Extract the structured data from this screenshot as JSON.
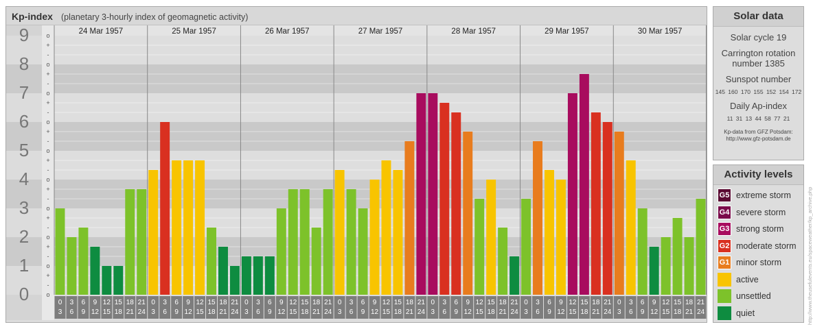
{
  "header": {
    "title": "Kp-index",
    "subtitle": "(planetary 3-hourly index of geomagnetic activity)"
  },
  "chart_data": {
    "type": "bar",
    "title": "Kp-index",
    "subtitle": "(planetary 3-hourly index of geomagnetic activity)",
    "ylim": [
      0,
      9
    ],
    "y_ticks": [
      "0",
      "1",
      "2",
      "3",
      "4",
      "5",
      "6",
      "7",
      "8",
      "9"
    ],
    "sub_ticks": [
      "-",
      "o",
      "+"
    ],
    "dates": [
      "24 Mar 1957",
      "25 Mar 1957",
      "26 Mar 1957",
      "27 Mar 1957",
      "28 Mar 1957",
      "29 Mar 1957",
      "30 Mar 1957"
    ],
    "interval_labels": [
      [
        "0",
        "3"
      ],
      [
        "3",
        "6"
      ],
      [
        "6",
        "9"
      ],
      [
        "9",
        "12"
      ],
      [
        "12",
        "15"
      ],
      [
        "15",
        "18"
      ],
      [
        "18",
        "21"
      ],
      [
        "21",
        "24"
      ]
    ],
    "values": [
      [
        3.0,
        2.0,
        2.333,
        1.667,
        1.0,
        1.0,
        3.667,
        3.667
      ],
      [
        4.333,
        6.0,
        4.667,
        4.667,
        4.667,
        2.333,
        1.667,
        1.0
      ],
      [
        1.333,
        1.333,
        1.333,
        3.0,
        3.667,
        3.667,
        2.333,
        3.667
      ],
      [
        4.333,
        3.667,
        3.0,
        4.0,
        4.667,
        4.333,
        5.333,
        7.0
      ],
      [
        7.0,
        6.667,
        6.333,
        5.667,
        3.333,
        4.0,
        2.333,
        1.333
      ],
      [
        3.333,
        5.333,
        4.333,
        4.0,
        7.0,
        7.667,
        6.333,
        6.0
      ],
      [
        5.667,
        4.667,
        3.0,
        1.667,
        2.0,
        2.667,
        2.0,
        3.333
      ]
    ],
    "grid": true
  },
  "solar": {
    "title": "Solar data",
    "cycle": "Solar cycle 19",
    "carrington_line1": "Carrington rotation",
    "carrington_line2": "number 1385",
    "sunspot_label": "Sunspot number",
    "sunspot_values": "145 160 170 155 152 154 172",
    "ap_label": "Daily Ap-index",
    "ap_values": "11 31 13 44 58 77 21",
    "credit_line1": "Kp-data from  GFZ Potsdam:",
    "credit_line2": "http://www.gfz-potsdam.de"
  },
  "levels": {
    "title": "Activity levels",
    "items": [
      {
        "code": "G5",
        "label": "extreme storm",
        "color": "#5a0a32"
      },
      {
        "code": "G4",
        "label": "severe storm",
        "color": "#7a0a4a"
      },
      {
        "code": "G3",
        "label": "strong storm",
        "color": "#a80c5e"
      },
      {
        "code": "G2",
        "label": "moderate storm",
        "color": "#d93020"
      },
      {
        "code": "G1",
        "label": "minor storm",
        "color": "#e87c1e"
      },
      {
        "code": "",
        "label": "active",
        "color": "#f8c400"
      },
      {
        "code": "",
        "label": "unsettled",
        "color": "#7dc22a"
      },
      {
        "code": "",
        "label": "quiet",
        "color": "#0e8c40"
      }
    ]
  },
  "side_credit": "http://www.theusefulevents.eu/spaceweather/kp_archive.php"
}
